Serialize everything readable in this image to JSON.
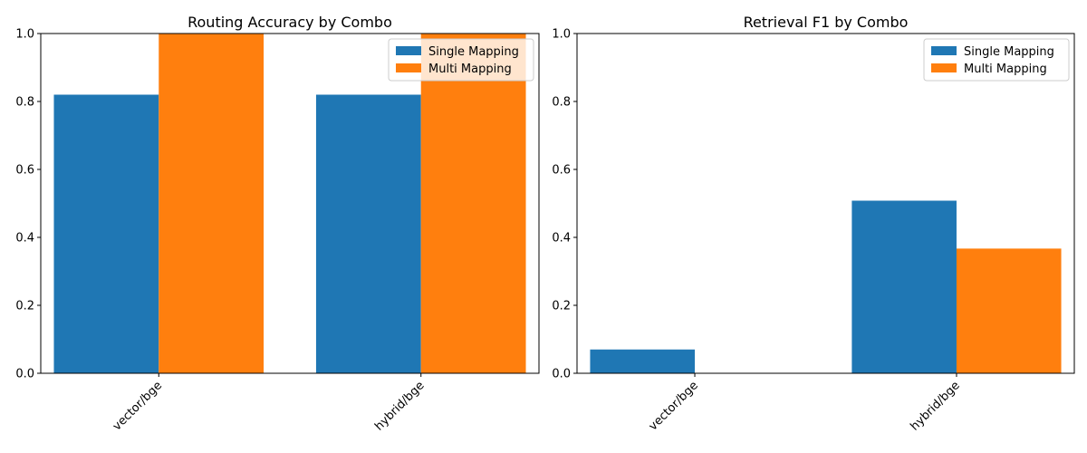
{
  "colors": {
    "series_0": "#1f77b4",
    "series_1": "#ff7f0e"
  },
  "chart_data": [
    {
      "type": "bar",
      "title": "Routing Accuracy by Combo",
      "xlabel": "",
      "ylabel": "",
      "categories": [
        "vector/bge",
        "hybrid/bge"
      ],
      "series": [
        {
          "name": "Single Mapping",
          "values": [
            0.82,
            0.82
          ]
        },
        {
          "name": "Multi Mapping",
          "values": [
            1.0,
            1.0
          ]
        }
      ],
      "ylim": [
        0,
        1
      ],
      "yticks": [
        "0.0",
        "0.2",
        "0.4",
        "0.6",
        "0.8",
        "1.0"
      ],
      "grid": false,
      "legend_position": "top-right"
    },
    {
      "type": "bar",
      "title": "Retrieval F1 by Combo",
      "xlabel": "",
      "ylabel": "",
      "categories": [
        "vector/bge",
        "hybrid/bge"
      ],
      "series": [
        {
          "name": "Single Mapping",
          "values": [
            0.07,
            0.508
          ]
        },
        {
          "name": "Multi Mapping",
          "values": [
            0.0,
            0.367
          ]
        }
      ],
      "ylim": [
        0,
        1
      ],
      "yticks": [
        "0.0",
        "0.2",
        "0.4",
        "0.6",
        "0.8",
        "1.0"
      ],
      "grid": false,
      "legend_position": "top-right"
    }
  ]
}
